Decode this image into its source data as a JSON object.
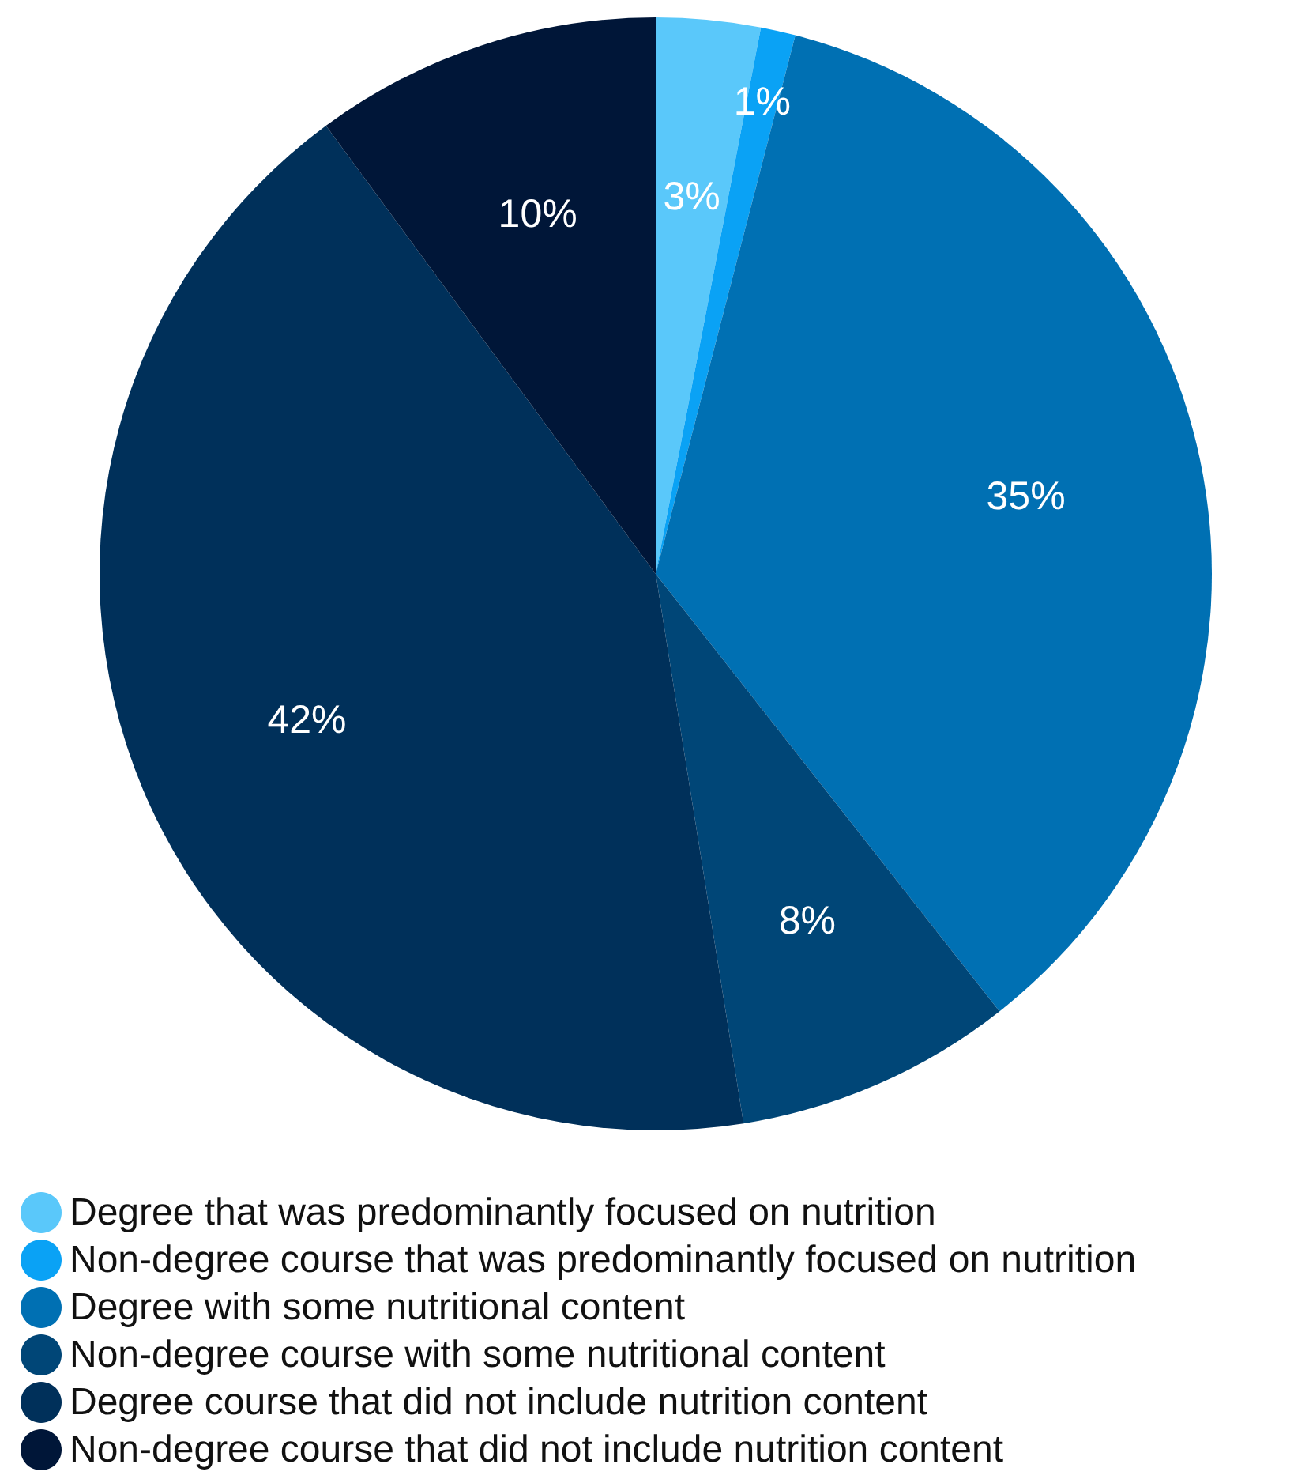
{
  "chart_data": {
    "type": "pie",
    "categories": [
      "Degree that was predominantly focused on nutrition",
      "Non-degree course that was predominantly focused on nutrition",
      "Degree with some nutritional content",
      "Non-degree course with some nutritional content",
      "Degree course that did not include nutrition content",
      "Non-degree course that did not include nutrition content"
    ],
    "values": [
      3,
      1,
      35,
      8,
      42,
      10
    ],
    "colors": [
      "#5ac8fa",
      "#0aa2f5",
      "#0070b3",
      "#004677",
      "#00305a",
      "#001638"
    ],
    "value_labels": [
      "3%",
      "1%",
      "35%",
      "8%",
      "42%",
      "10%"
    ],
    "legend": "bottom"
  }
}
